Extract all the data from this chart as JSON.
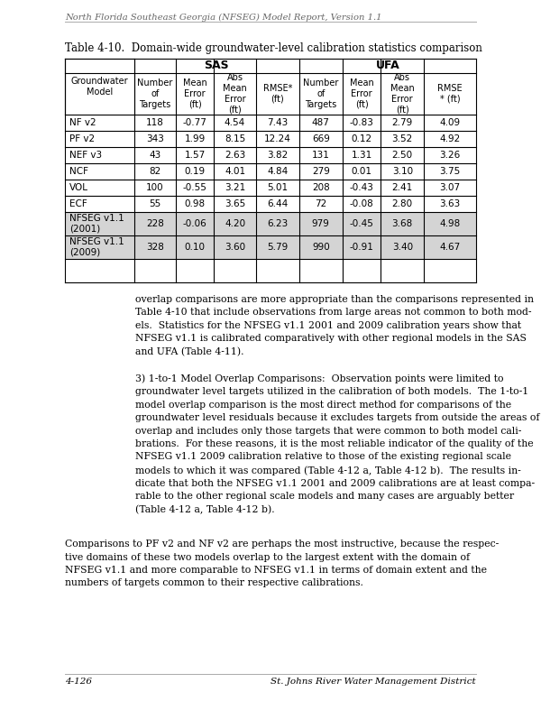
{
  "page_header": "North Florida Southeast Georgia (NFSEG) Model Report, Version 1.1",
  "table_title": "Table 4-10.  Domain-wide groundwater-level calibration statistics comparison",
  "rows": [
    [
      "NF v2",
      "118",
      "-0.77",
      "4.54",
      "7.43",
      "487",
      "-0.83",
      "2.79",
      "4.09"
    ],
    [
      "PF v2",
      "343",
      "1.99",
      "8.15",
      "12.24",
      "669",
      "0.12",
      "3.52",
      "4.92"
    ],
    [
      "NEF v3",
      "43",
      "1.57",
      "2.63",
      "3.82",
      "131",
      "1.31",
      "2.50",
      "3.26"
    ],
    [
      "NCF",
      "82",
      "0.19",
      "4.01",
      "4.84",
      "279",
      "0.01",
      "3.10",
      "3.75"
    ],
    [
      "VOL",
      "100",
      "-0.55",
      "3.21",
      "5.01",
      "208",
      "-0.43",
      "2.41",
      "3.07"
    ],
    [
      "ECF",
      "55",
      "0.98",
      "3.65",
      "6.44",
      "72",
      "-0.08",
      "2.80",
      "3.63"
    ],
    [
      "NFSEG v1.1\n(2001)",
      "228",
      "-0.06",
      "4.20",
      "6.23",
      "979",
      "-0.45",
      "3.68",
      "4.98"
    ],
    [
      "NFSEG v1.1\n(2009)",
      "328",
      "0.10",
      "3.60",
      "5.79",
      "990",
      "-0.91",
      "3.40",
      "4.67"
    ]
  ],
  "shaded_rows": [
    6,
    7
  ],
  "shade_color": "#d4d4d4",
  "para1": "overlap comparisons are more appropriate than the comparisons represented in\nTable 4-10 that include observations from large areas not common to both mod-\nels.  Statistics for the NFSEG v1.1 2001 and 2009 calibration years show that\nNFSEG v1.1 is calibrated comparatively with other regional models in the SAS\nand UFA (Table 4-11).",
  "para2": "3) 1-to-1 Model Overlap Comparisons:  Observation points were limited to\ngroundwater level targets utilized in the calibration of both models.  The 1-to-1\nmodel overlap comparison is the most direct method for comparisons of the\ngroundwater level residuals because it excludes targets from outside the areas of\noverlap and includes only those targets that were common to both model cali-\nbrations.  For these reasons, it is the most reliable indicator of the quality of the\nNFSEG v1.1 2009 calibration relative to those of the existing regional scale\nmodels to which it was compared (Table 4-12 a, Table 4-12 b).  The results in-\ndicate that both the NFSEG v1.1 2001 and 2009 calibrations are at least compa-\nrable to the other regional scale models and many cases are arguably better\n(Table 4-12 a, Table 4-12 b).",
  "para3": "Comparisons to PF v2 and NF v2 are perhaps the most instructive, because the respec-\ntive domains of these two models overlap to the largest extent with the domain of\nNFSEG v1.1 and more comparable to NFSEG v1.1 in terms of domain extent and the\nnumbers of targets common to their respective calibrations.",
  "footer_left": "4-126",
  "footer_right": "St. Johns River Water Management District",
  "bg_color": "#ffffff",
  "text_color": "#000000",
  "border_color": "#000000"
}
